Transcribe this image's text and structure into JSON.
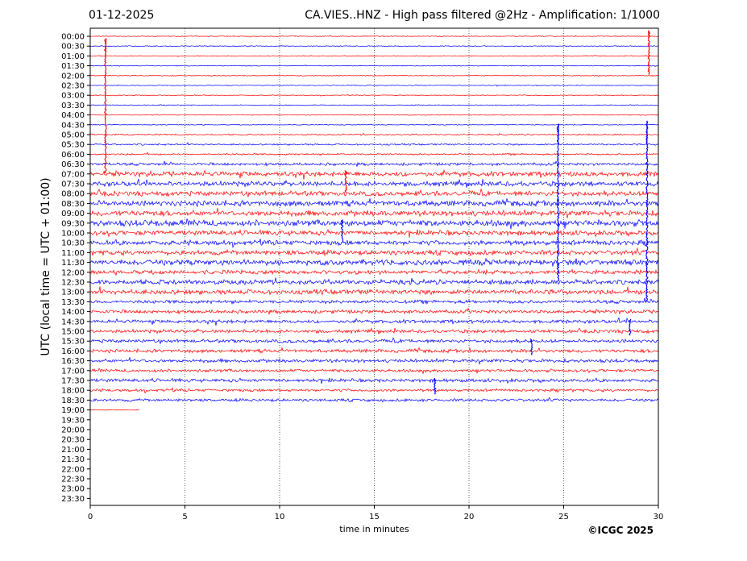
{
  "header": {
    "date": "01-12-2025",
    "title": "CA.VIES..HNZ - High pass filtered @2Hz - Amplification: 1/1000"
  },
  "footer": {
    "copyright": "©ICGC 2025"
  },
  "chart_data": {
    "type": "line",
    "subtype": "helicorder",
    "xlabel": "time in minutes",
    "ylabel": "UTC (local time = UTC + 01:00)",
    "xlim": [
      0,
      30
    ],
    "x_ticks": [
      0,
      5,
      10,
      15,
      20,
      25,
      30
    ],
    "grid": "vertical dotted lines at 5-minute ticks",
    "colors": {
      "odd_rows": "#ff0000",
      "even_rows": "#0000ff"
    },
    "row_labels": [
      "00:00",
      "00:30",
      "01:00",
      "01:30",
      "02:00",
      "02:30",
      "03:00",
      "03:30",
      "04:00",
      "04:30",
      "05:00",
      "05:30",
      "06:00",
      "06:30",
      "07:00",
      "07:30",
      "08:00",
      "08:30",
      "09:00",
      "09:30",
      "10:00",
      "10:30",
      "11:00",
      "11:30",
      "12:00",
      "12:30",
      "13:00",
      "13:30",
      "14:00",
      "14:30",
      "15:00",
      "15:30",
      "16:00",
      "16:30",
      "17:00",
      "17:30",
      "18:00",
      "18:30",
      "19:00",
      "19:30",
      "20:00",
      "20:30",
      "21:00",
      "21:30",
      "22:00",
      "22:30",
      "23:00",
      "23:30"
    ],
    "trace_end_minutes": [
      30,
      30,
      30,
      30,
      30,
      30,
      30,
      30,
      30,
      30,
      30,
      30,
      30,
      30,
      30,
      30,
      30,
      30,
      30,
      30,
      30,
      30,
      30,
      30,
      30,
      30,
      30,
      30,
      30,
      30,
      30,
      30,
      30,
      30,
      30,
      30,
      30,
      30,
      2.6,
      0,
      0,
      0,
      0,
      0,
      0,
      0,
      0,
      0
    ],
    "noise_level": [
      0.06,
      0.06,
      0.06,
      0.06,
      0.06,
      0.06,
      0.06,
      0.06,
      0.06,
      0.06,
      0.1,
      0.12,
      0.12,
      0.2,
      0.35,
      0.35,
      0.35,
      0.4,
      0.4,
      0.45,
      0.35,
      0.35,
      0.35,
      0.4,
      0.3,
      0.35,
      0.35,
      0.25,
      0.25,
      0.25,
      0.25,
      0.25,
      0.25,
      0.25,
      0.22,
      0.25,
      0.2,
      0.2,
      0.05,
      0,
      0,
      0,
      0,
      0,
      0,
      0,
      0,
      0
    ],
    "events": [
      {
        "row": 0,
        "minute": 29.5,
        "peak": 4
      },
      {
        "row": 2,
        "minute": 0.8,
        "peak": 12
      },
      {
        "row": 11,
        "minute": 24.7,
        "peak": 14
      },
      {
        "row": 11,
        "minute": 29.4,
        "peak": 16
      },
      {
        "row": 14,
        "minute": 13.5,
        "peak": 2
      },
      {
        "row": 19,
        "minute": 13.3,
        "peak": 2
      },
      {
        "row": 29,
        "minute": 28.5,
        "peak": 1.5
      },
      {
        "row": 31,
        "minute": 23.3,
        "peak": 1.5
      },
      {
        "row": 35,
        "minute": 18.2,
        "peak": 1.5
      }
    ]
  }
}
